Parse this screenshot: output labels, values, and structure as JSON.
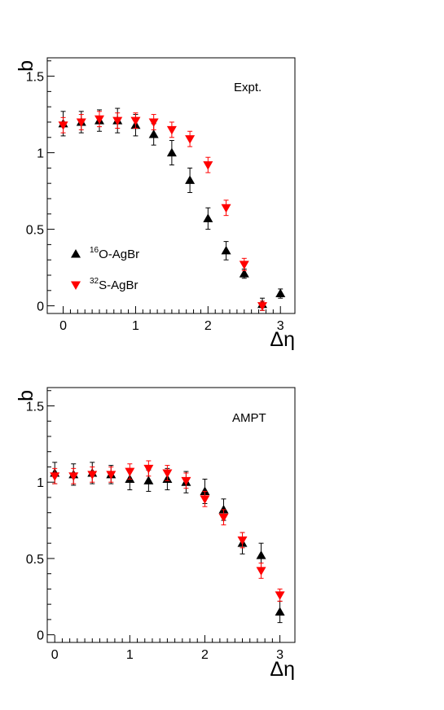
{
  "chart_data": [
    {
      "type": "scatter",
      "title": "",
      "annotation": "Expt.",
      "xlabel": "Δη",
      "ylabel": "b",
      "xlim": [
        -0.22,
        3.2
      ],
      "ylim": [
        -0.05,
        1.62
      ],
      "xticks": [
        "0",
        "1",
        "2",
        "3"
      ],
      "yticks": [
        "0",
        "0.5",
        "1",
        "1.5"
      ],
      "grid": false,
      "legend_position": "bottom-left",
      "series": [
        {
          "name": "¹⁶O-AgBr",
          "label_mass": "16",
          "label_text": "O-AgBr",
          "color": "#000000",
          "marker": "triangle-up",
          "x": [
            0,
            0.25,
            0.5,
            0.75,
            1.0,
            1.25,
            1.5,
            1.75,
            2.0,
            2.25,
            2.5,
            2.75,
            3.0
          ],
          "y": [
            1.19,
            1.2,
            1.21,
            1.21,
            1.18,
            1.12,
            1.0,
            0.82,
            0.57,
            0.36,
            0.21,
            0.01,
            0.08
          ],
          "err": [
            0.08,
            0.07,
            0.07,
            0.08,
            0.07,
            0.07,
            0.08,
            0.08,
            0.07,
            0.06,
            0.03,
            0.04,
            0.03
          ]
        },
        {
          "name": "³²S-AgBr",
          "label_mass": "32",
          "label_text": "S-AgBr",
          "color": "#ff0000",
          "marker": "triangle-down",
          "x": [
            0,
            0.25,
            0.5,
            0.75,
            1.0,
            1.25,
            1.5,
            1.75,
            2.0,
            2.25,
            2.5,
            2.75
          ],
          "y": [
            1.18,
            1.2,
            1.22,
            1.21,
            1.21,
            1.2,
            1.15,
            1.09,
            0.92,
            0.64,
            0.27,
            0.0
          ],
          "err": [
            0.05,
            0.05,
            0.05,
            0.05,
            0.05,
            0.05,
            0.05,
            0.05,
            0.05,
            0.05,
            0.04,
            0.03
          ]
        }
      ]
    },
    {
      "type": "scatter",
      "title": "",
      "annotation": "AMPT",
      "xlabel": "Δη",
      "ylabel": "b",
      "xlim": [
        -0.1,
        3.2
      ],
      "ylim": [
        -0.05,
        1.62
      ],
      "xticks": [
        "0",
        "1",
        "2",
        "3"
      ],
      "yticks": [
        "0",
        "0.5",
        "1",
        "1.5"
      ],
      "grid": false,
      "series": [
        {
          "name": "¹⁶O-AgBr",
          "color": "#000000",
          "marker": "triangle-up",
          "x": [
            0,
            0.25,
            0.5,
            0.75,
            1.0,
            1.25,
            1.5,
            1.75,
            2.0,
            2.25,
            2.5,
            2.75,
            3.0
          ],
          "y": [
            1.06,
            1.05,
            1.06,
            1.05,
            1.02,
            1.01,
            1.02,
            1.0,
            0.94,
            0.82,
            0.6,
            0.52,
            0.15
          ],
          "err": [
            0.07,
            0.07,
            0.07,
            0.06,
            0.07,
            0.07,
            0.07,
            0.07,
            0.08,
            0.07,
            0.07,
            0.08,
            0.07
          ]
        },
        {
          "name": "³²S-AgBr",
          "color": "#ff0000",
          "marker": "triangle-down",
          "x": [
            0,
            0.25,
            0.5,
            0.75,
            1.0,
            1.25,
            1.5,
            1.75,
            2.0,
            2.25,
            2.5,
            2.75,
            3.0
          ],
          "y": [
            1.04,
            1.04,
            1.05,
            1.05,
            1.07,
            1.09,
            1.06,
            1.01,
            0.89,
            0.77,
            0.62,
            0.42,
            0.26
          ],
          "err": [
            0.05,
            0.05,
            0.05,
            0.05,
            0.05,
            0.05,
            0.05,
            0.05,
            0.05,
            0.05,
            0.05,
            0.05,
            0.04
          ]
        }
      ]
    }
  ]
}
